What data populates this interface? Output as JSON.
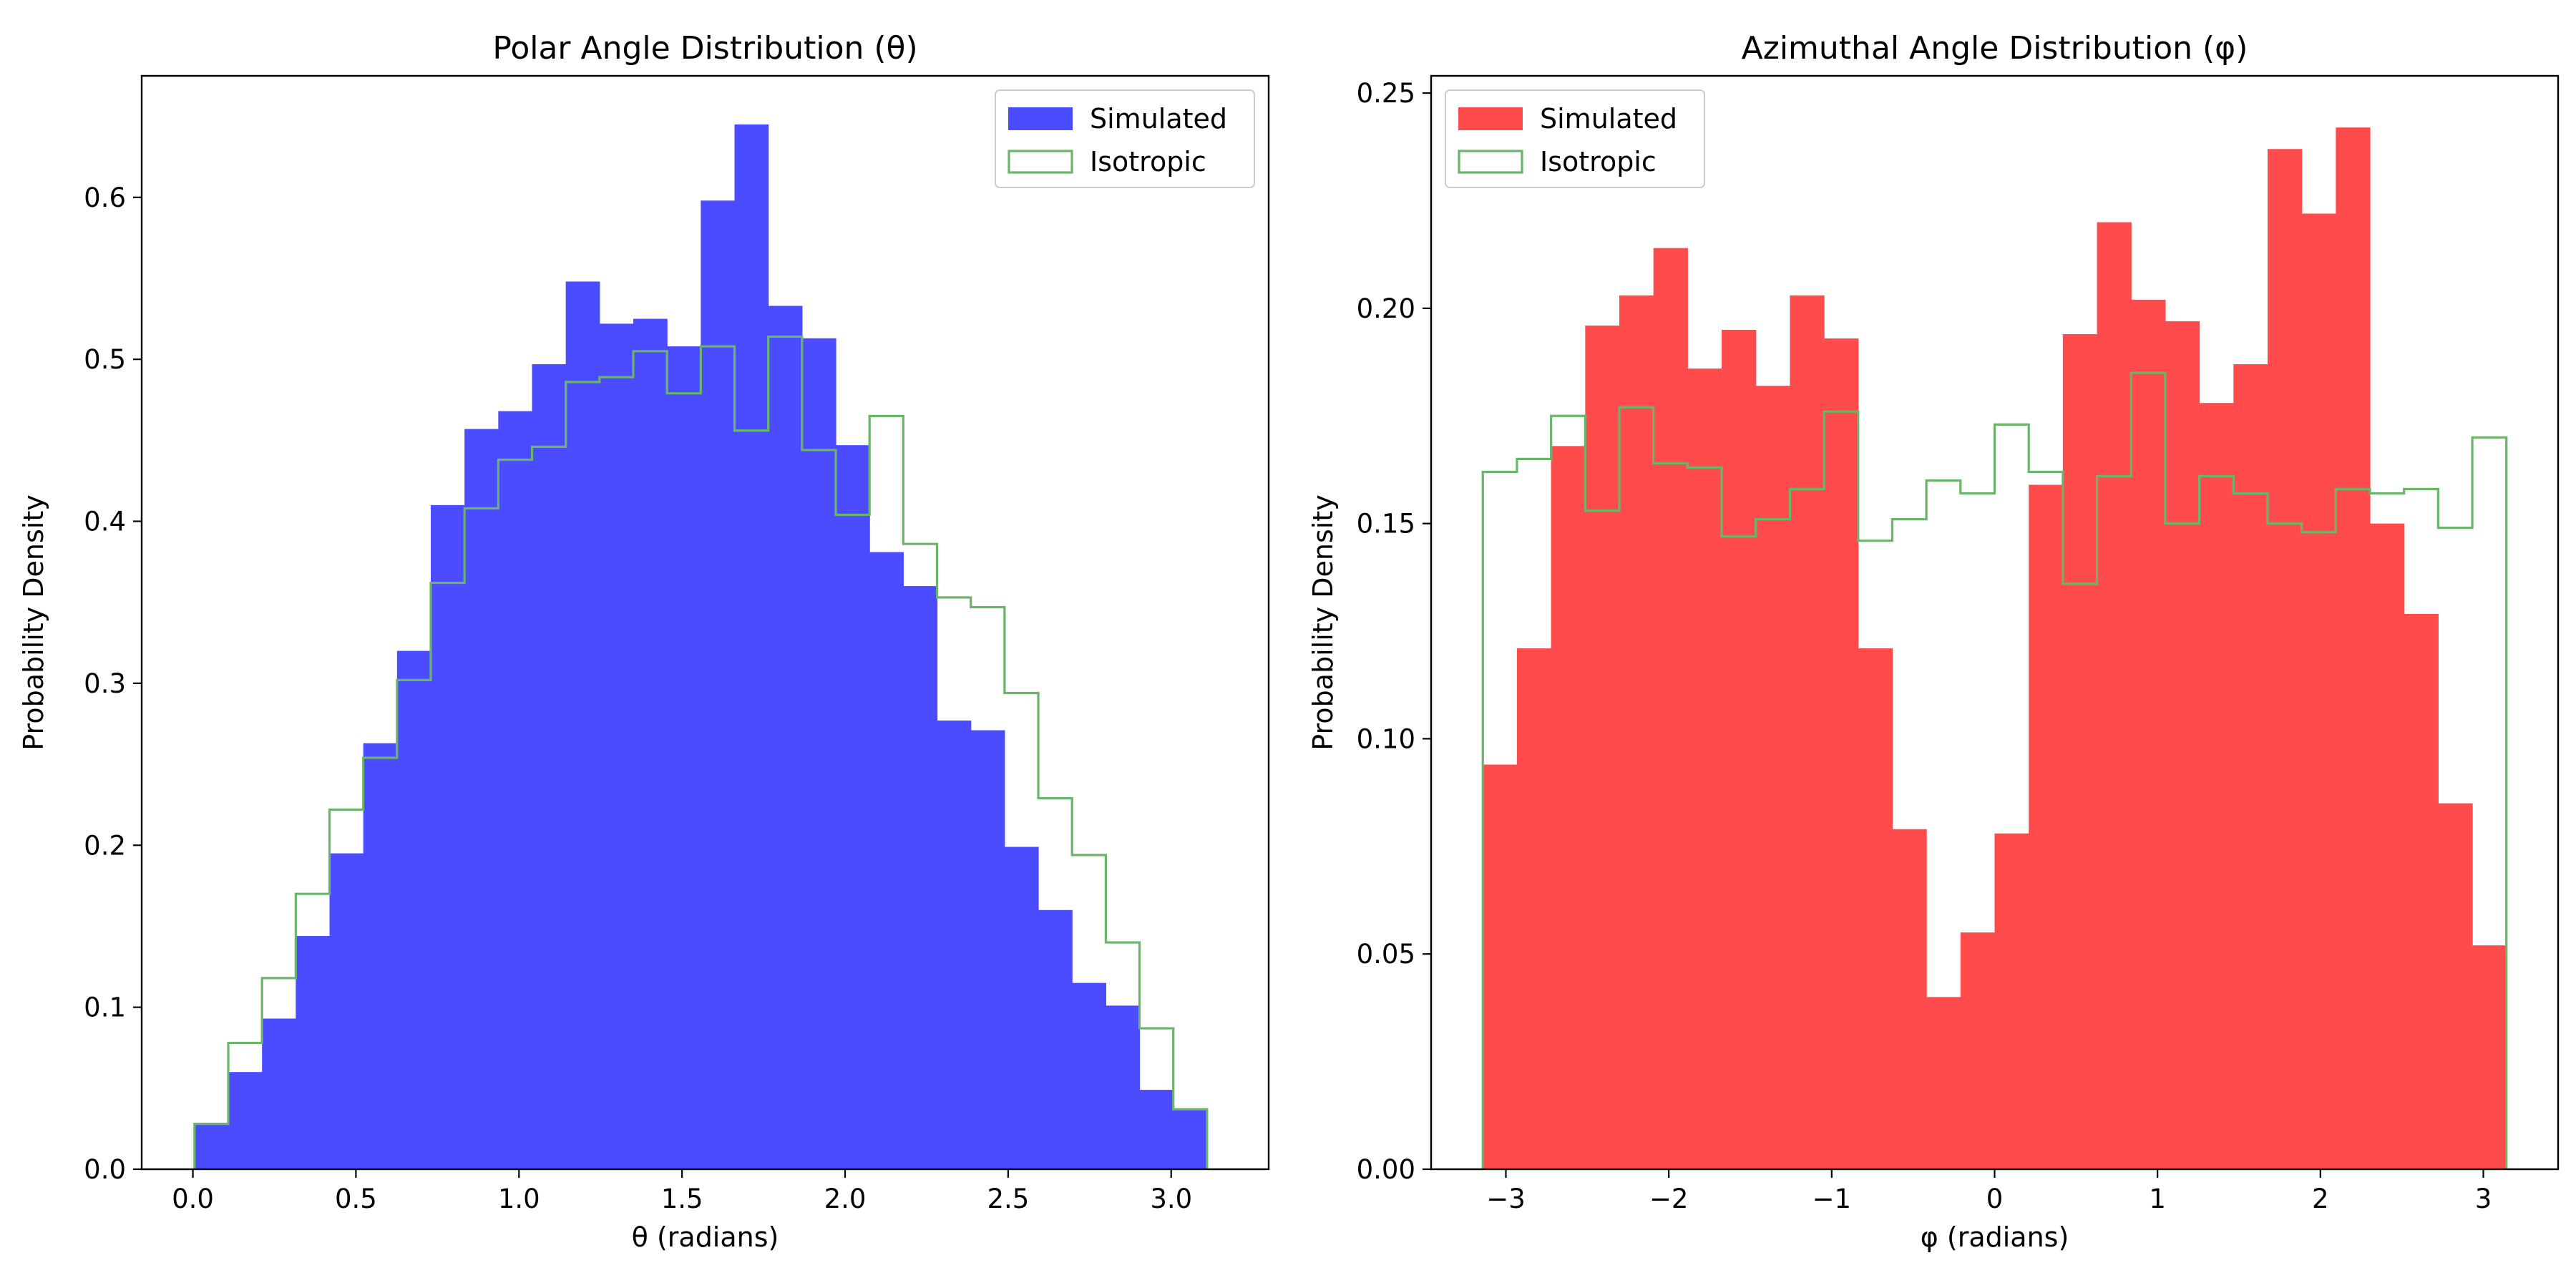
{
  "chart_data": [
    {
      "type": "bar",
      "title": "Polar Angle Distribution (θ)",
      "xlabel": "θ (radians)",
      "ylabel": "Probability Density",
      "xlim": [
        -0.157,
        3.299
      ],
      "ylim": [
        0,
        0.675
      ],
      "xticks": [
        0,
        0.5,
        1,
        1.5,
        2,
        2.5,
        3
      ],
      "xtick_labels": [
        "0.0",
        "0.5",
        "1.0",
        "1.5",
        "2.0",
        "2.5",
        "3.0"
      ],
      "yticks": [
        0,
        0.1,
        0.2,
        0.3,
        0.4,
        0.5,
        0.6
      ],
      "ytick_labels": [
        "0.0",
        "0.1",
        "0.2",
        "0.3",
        "0.4",
        "0.5",
        "0.6"
      ],
      "legend_position": "top-right",
      "series": [
        {
          "name": "Simulated",
          "style": "filled",
          "color": "#4b4bff",
          "bin_start": 0.005,
          "bin_end": 3.11,
          "values": [
            0.028,
            0.06,
            0.093,
            0.144,
            0.195,
            0.263,
            0.32,
            0.41,
            0.457,
            0.468,
            0.497,
            0.548,
            0.522,
            0.525,
            0.508,
            0.598,
            0.645,
            0.533,
            0.513,
            0.447,
            0.381,
            0.36,
            0.277,
            0.271,
            0.199,
            0.16,
            0.115,
            0.101,
            0.049,
            0.037
          ]
        },
        {
          "name": "Isotropic",
          "style": "step",
          "color": "#6bb56b",
          "bin_start": 0.005,
          "bin_end": 3.11,
          "values": [
            0.028,
            0.078,
            0.118,
            0.17,
            0.222,
            0.254,
            0.302,
            0.362,
            0.408,
            0.438,
            0.446,
            0.486,
            0.489,
            0.505,
            0.479,
            0.508,
            0.456,
            0.514,
            0.444,
            0.404,
            0.465,
            0.386,
            0.353,
            0.347,
            0.294,
            0.229,
            0.194,
            0.14,
            0.087,
            0.037
          ]
        }
      ]
    },
    {
      "type": "bar",
      "title": "Azimuthal Angle Distribution (φ)",
      "xlabel": "φ (radians)",
      "ylabel": "Probability Density",
      "xlim": [
        -3.459,
        3.459
      ],
      "ylim": [
        0,
        0.254
      ],
      "xticks": [
        -3,
        -2,
        -1,
        0,
        1,
        2,
        3
      ],
      "xtick_labels": [
        "−3",
        "−2",
        "−1",
        "0",
        "1",
        "2",
        "3"
      ],
      "yticks": [
        0,
        0.05,
        0.1,
        0.15,
        0.2,
        0.25
      ],
      "ytick_labels": [
        "0.00",
        "0.05",
        "0.10",
        "0.15",
        "0.20",
        "0.25"
      ],
      "legend_position": "top-left",
      "series": [
        {
          "name": "Simulated",
          "style": "filled",
          "color": "#ff4b4b",
          "bin_start": -3.14159,
          "bin_end": 3.14159,
          "values": [
            0.094,
            0.121,
            0.168,
            0.196,
            0.203,
            0.214,
            0.186,
            0.195,
            0.182,
            0.203,
            0.193,
            0.121,
            0.079,
            0.04,
            0.055,
            0.078,
            0.159,
            0.194,
            0.22,
            0.202,
            0.197,
            0.178,
            0.187,
            0.237,
            0.222,
            0.242,
            0.15,
            0.129,
            0.085,
            0.052
          ]
        },
        {
          "name": "Isotropic",
          "style": "step",
          "color": "#6bb56b",
          "bin_start": -3.14159,
          "bin_end": 3.14159,
          "values": [
            0.162,
            0.165,
            0.175,
            0.153,
            0.177,
            0.164,
            0.163,
            0.147,
            0.151,
            0.158,
            0.176,
            0.146,
            0.151,
            0.16,
            0.157,
            0.173,
            0.162,
            0.136,
            0.161,
            0.185,
            0.15,
            0.161,
            0.157,
            0.15,
            0.148,
            0.158,
            0.157,
            0.158,
            0.149,
            0.17
          ]
        }
      ]
    }
  ]
}
